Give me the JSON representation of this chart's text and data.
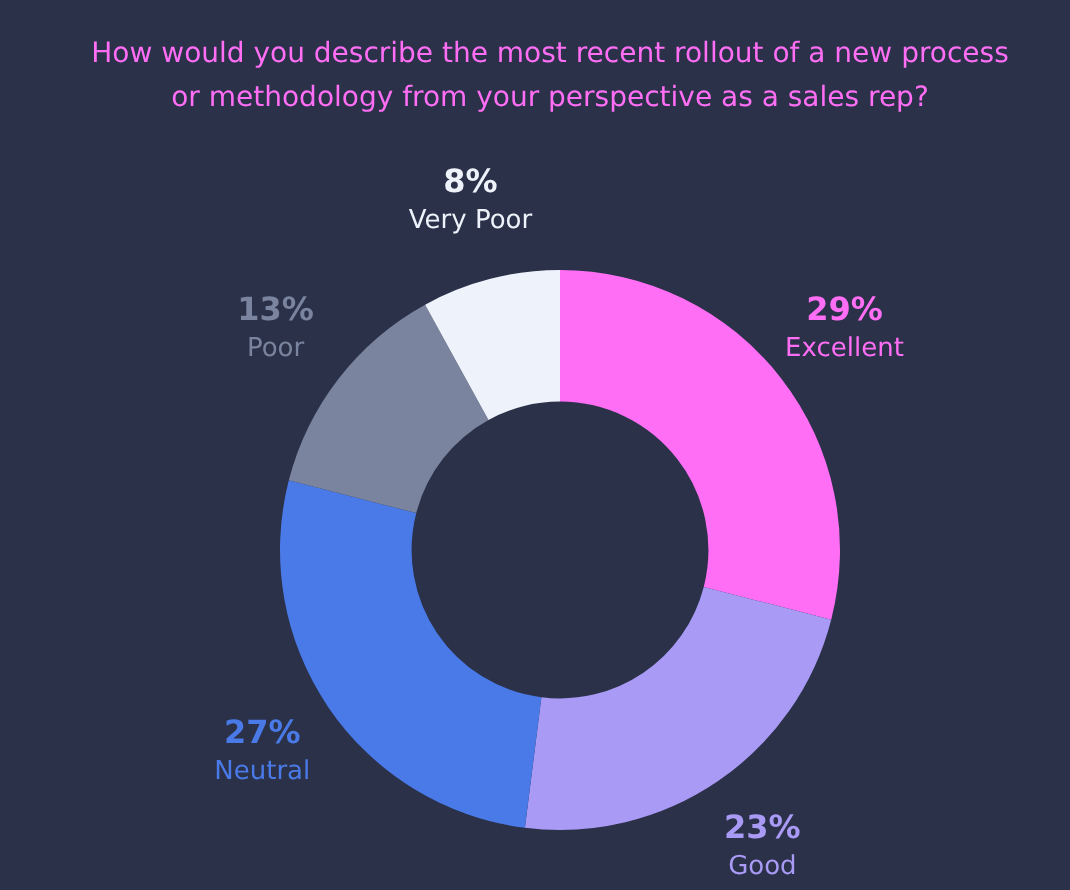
{
  "chart_data": {
    "type": "donut",
    "title": "How would you describe the most recent rollout of a new process or methodology from your perspective as a sales rep?",
    "categories": [
      "Excellent",
      "Good",
      "Neutral",
      "Poor",
      "Very Poor"
    ],
    "values": [
      29,
      23,
      27,
      13,
      8
    ],
    "value_labels": [
      "29%",
      "23%",
      "27%",
      "13%",
      "8%"
    ],
    "colors": [
      "#ff6ef5",
      "#a99af5",
      "#4a7ae8",
      "#7a849e",
      "#eef2fb"
    ],
    "legend": false
  }
}
